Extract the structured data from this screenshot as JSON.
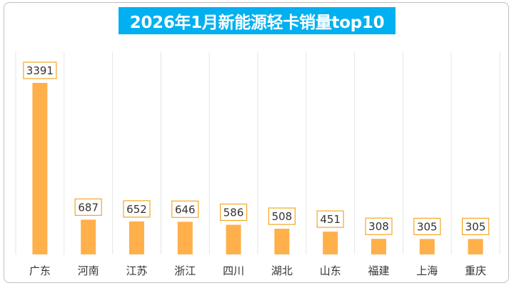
{
  "chart_data": {
    "type": "bar",
    "title": "2026年1月新能源轻卡销量top10",
    "categories": [
      "广东",
      "河南",
      "江苏",
      "浙江",
      "四川",
      "湖北",
      "山东",
      "福建",
      "上海",
      "重庆"
    ],
    "values": [
      3391,
      687,
      652,
      646,
      586,
      508,
      451,
      308,
      305,
      305
    ],
    "xlabel": "",
    "ylabel": "",
    "ylim": [
      0,
      3600
    ],
    "grid": false,
    "legend": "none",
    "colors": {
      "bar": "#ffb04a",
      "label_border": "#f5a623",
      "label_text": "#333333",
      "title_bg": "#00b0f0",
      "title_text": "#ffffff",
      "separator": "#e6e6e6"
    }
  }
}
